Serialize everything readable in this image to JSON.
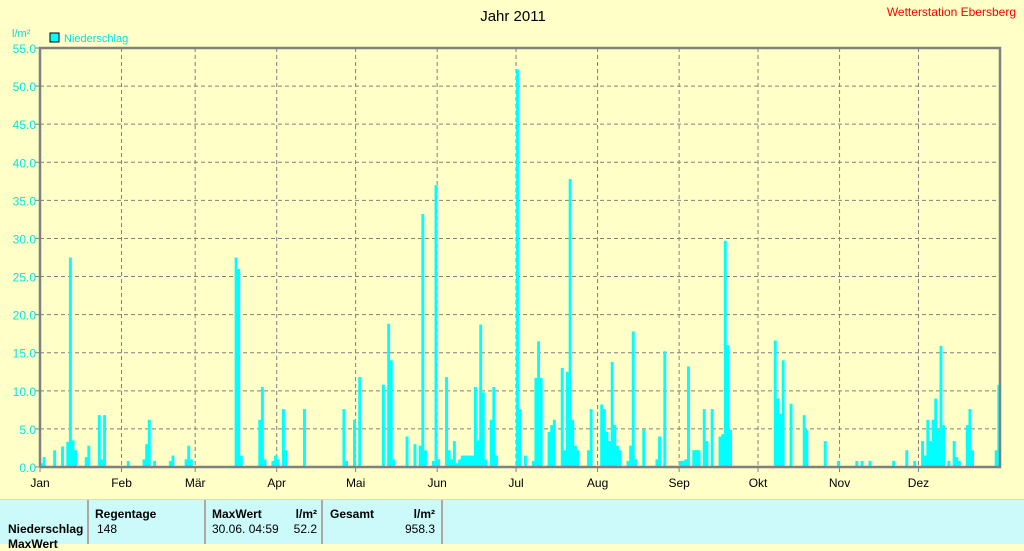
{
  "header": {
    "title": "Jahr 2011",
    "station": "Wetterstation Ebersberg"
  },
  "chart_data": {
    "type": "bar",
    "title": "Jahr 2011",
    "ylabel": "l/m²",
    "xlabel": "",
    "ylim": [
      0,
      55
    ],
    "yticks": [
      "0.0",
      "5.0",
      "10.0",
      "15.0",
      "20.0",
      "25.0",
      "30.0",
      "35.0",
      "40.0",
      "45.0",
      "50.0",
      "55.0"
    ],
    "xticks": [
      {
        "label": "Jan",
        "day": 1
      },
      {
        "label": "Feb",
        "day": 32
      },
      {
        "label": "Mär",
        "day": 60
      },
      {
        "label": "Apr",
        "day": 91
      },
      {
        "label": "Mai",
        "day": 121
      },
      {
        "label": "Jun",
        "day": 152
      },
      {
        "label": "Jul",
        "day": 182
      },
      {
        "label": "Aug",
        "day": 213
      },
      {
        "label": "Sep",
        "day": 244
      },
      {
        "label": "Okt",
        "day": 274
      },
      {
        "label": "Nov",
        "day": 305
      },
      {
        "label": "Dez",
        "day": 335
      }
    ],
    "days_in_year": 365,
    "grid": true,
    "legend": {
      "label": "Niederschlag",
      "position": "top-left"
    },
    "color": "#00ffff",
    "series": [
      {
        "name": "Niederschlag",
        "points_day_value": [
          [
            1,
            0.5
          ],
          [
            2,
            1.3
          ],
          [
            6,
            2.2
          ],
          [
            9,
            2.7
          ],
          [
            11,
            3.3
          ],
          [
            12,
            27.5
          ],
          [
            13,
            3.5
          ],
          [
            14,
            2.2
          ],
          [
            18,
            1.3
          ],
          [
            19,
            2.8
          ],
          [
            23,
            6.8
          ],
          [
            24,
            1.0
          ],
          [
            25,
            6.8
          ],
          [
            34,
            0.8
          ],
          [
            40,
            1.0
          ],
          [
            41,
            3.0
          ],
          [
            42,
            6.2
          ],
          [
            44,
            0.8
          ],
          [
            50,
            0.8
          ],
          [
            51,
            1.5
          ],
          [
            56,
            1.0
          ],
          [
            57,
            2.8
          ],
          [
            58,
            1.0
          ],
          [
            75,
            27.5
          ],
          [
            76,
            26.0
          ],
          [
            77,
            1.5
          ],
          [
            84,
            6.2
          ],
          [
            85,
            10.5
          ],
          [
            86,
            1.0
          ],
          [
            89,
            0.8
          ],
          [
            90,
            1.5
          ],
          [
            91,
            1.0
          ],
          [
            93,
            7.6
          ],
          [
            94,
            2.2
          ],
          [
            101,
            7.6
          ],
          [
            116,
            7.6
          ],
          [
            117,
            0.8
          ],
          [
            120,
            6.2
          ],
          [
            122,
            11.8
          ],
          [
            131,
            10.8
          ],
          [
            133,
            18.8
          ],
          [
            134,
            14.0
          ],
          [
            135,
            1.0
          ],
          [
            140,
            4.0
          ],
          [
            143,
            3.0
          ],
          [
            145,
            2.8
          ],
          [
            146,
            33.2
          ],
          [
            147,
            2.2
          ],
          [
            150,
            0.8
          ],
          [
            151,
            37.0
          ],
          [
            152,
            1.0
          ],
          [
            155,
            11.8
          ],
          [
            156,
            2.2
          ],
          [
            157,
            1.0
          ],
          [
            158,
            3.4
          ],
          [
            159,
            0.5
          ],
          [
            160,
            1.0
          ],
          [
            161,
            1.5
          ],
          [
            162,
            1.5
          ],
          [
            163,
            1.5
          ],
          [
            164,
            1.5
          ],
          [
            165,
            1.5
          ],
          [
            166,
            10.5
          ],
          [
            167,
            3.5
          ],
          [
            168,
            18.7
          ],
          [
            169,
            9.8
          ],
          [
            170,
            1.0
          ],
          [
            172,
            6.2
          ],
          [
            173,
            10.5
          ],
          [
            174,
            1.5
          ],
          [
            182,
            52.2
          ],
          [
            183,
            7.6
          ],
          [
            185,
            1.5
          ],
          [
            188,
            0.8
          ],
          [
            189,
            11.7
          ],
          [
            190,
            16.5
          ],
          [
            191,
            11.7
          ],
          [
            194,
            4.6
          ],
          [
            195,
            5.5
          ],
          [
            196,
            6.2
          ],
          [
            199,
            13.0
          ],
          [
            200,
            2.2
          ],
          [
            201,
            12.5
          ],
          [
            202,
            37.8
          ],
          [
            203,
            6.2
          ],
          [
            204,
            2.8
          ],
          [
            205,
            2.2
          ],
          [
            209,
            2.2
          ],
          [
            210,
            7.6
          ],
          [
            214,
            8.2
          ],
          [
            215,
            7.6
          ],
          [
            216,
            4.6
          ],
          [
            217,
            3.4
          ],
          [
            218,
            13.8
          ],
          [
            219,
            5.5
          ],
          [
            220,
            2.8
          ],
          [
            221,
            2.2
          ],
          [
            224,
            0.8
          ],
          [
            225,
            2.8
          ],
          [
            226,
            17.8
          ],
          [
            227,
            1.0
          ],
          [
            230,
            4.9
          ],
          [
            235,
            1.0
          ],
          [
            236,
            4.0
          ],
          [
            238,
            15.2
          ],
          [
            244,
            0.8
          ],
          [
            245,
            0.8
          ],
          [
            246,
            1.0
          ],
          [
            247,
            13.2
          ],
          [
            249,
            2.2
          ],
          [
            250,
            2.2
          ],
          [
            251,
            2.2
          ],
          [
            253,
            7.6
          ],
          [
            254,
            3.4
          ],
          [
            256,
            7.6
          ],
          [
            259,
            4.0
          ],
          [
            260,
            4.3
          ],
          [
            261,
            29.7
          ],
          [
            262,
            16.0
          ],
          [
            263,
            4.9
          ],
          [
            280,
            16.6
          ],
          [
            281,
            9.0
          ],
          [
            282,
            7.0
          ],
          [
            283,
            14.0
          ],
          [
            286,
            8.3
          ],
          [
            291,
            6.8
          ],
          [
            292,
            4.9
          ],
          [
            299,
            3.4
          ],
          [
            304,
            0.8
          ],
          [
            311,
            0.8
          ],
          [
            313,
            0.8
          ],
          [
            316,
            0.8
          ],
          [
            325,
            0.8
          ],
          [
            330,
            2.2
          ],
          [
            333,
            0.8
          ],
          [
            336,
            3.4
          ],
          [
            337,
            1.5
          ],
          [
            338,
            6.2
          ],
          [
            339,
            3.4
          ],
          [
            340,
            6.2
          ],
          [
            341,
            9.0
          ],
          [
            342,
            4.9
          ],
          [
            343,
            15.9
          ],
          [
            344,
            5.5
          ],
          [
            346,
            0.8
          ],
          [
            348,
            3.4
          ],
          [
            349,
            1.3
          ],
          [
            350,
            0.8
          ],
          [
            353,
            5.5
          ],
          [
            354,
            7.6
          ],
          [
            355,
            2.2
          ],
          [
            364,
            2.2
          ],
          [
            365,
            10.8
          ]
        ]
      }
    ]
  },
  "summary": {
    "row_label": "Niederschlag",
    "row2_label": "MaxWert",
    "regentage_header": "Regentage",
    "regentage_value": "148",
    "maxwert_header": "MaxWert",
    "maxwert_unit": "l/m²",
    "maxwert_time": "30.06.  04:59",
    "maxwert_value": "52.2",
    "gesamt_header": "Gesamt",
    "gesamt_unit": "l/m²",
    "gesamt_value": "958.3"
  }
}
